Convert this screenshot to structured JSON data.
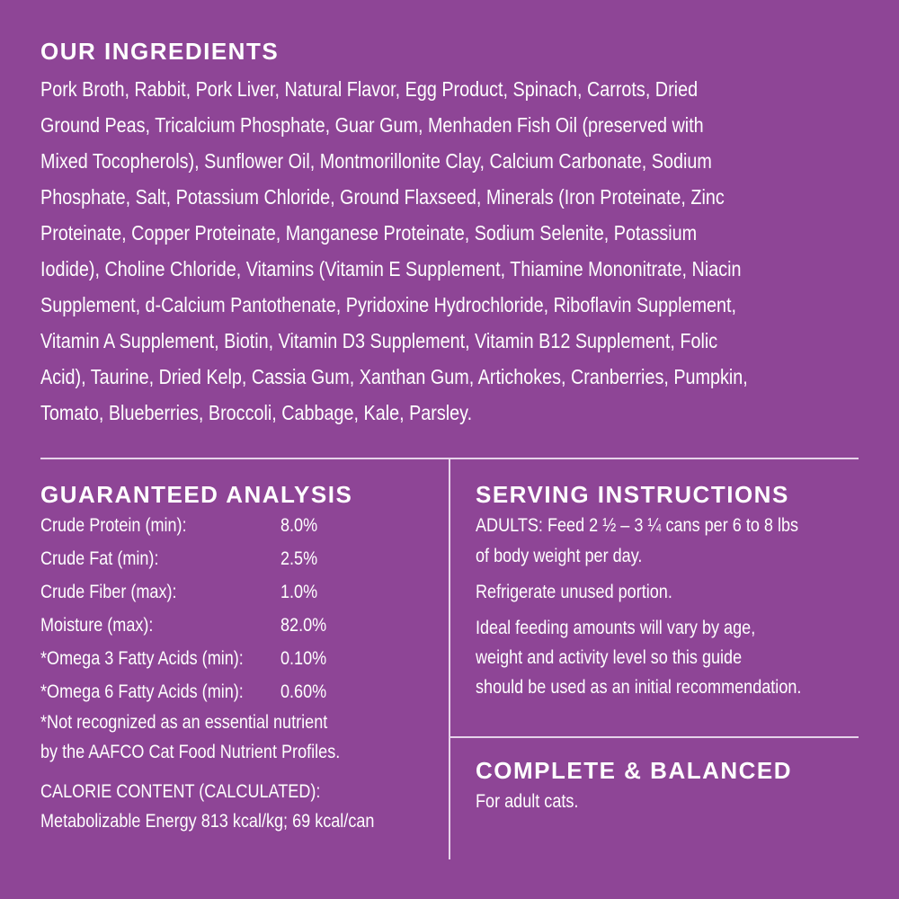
{
  "ingredients": {
    "title": "OUR INGREDIENTS",
    "lines": [
      "Pork Broth, Rabbit, Pork Liver, Natural Flavor, Egg Product, Spinach, Carrots, Dried",
      "Ground Peas, Tricalcium Phosphate, Guar Gum, Menhaden Fish Oil (preserved with",
      "Mixed Tocopherols), Sunflower Oil, Montmorillonite Clay, Calcium Carbonate, Sodium",
      "Phosphate, Salt, Potassium Chloride, Ground Flaxseed, Minerals (Iron Proteinate, Zinc",
      "Proteinate, Copper Proteinate, Manganese Proteinate, Sodium Selenite, Potassium",
      "Iodide), Choline Chloride, Vitamins (Vitamin E Supplement, Thiamine Mononitrate, Niacin",
      "Supplement, d-Calcium Pantothenate, Pyridoxine Hydrochloride, Riboflavin Supplement,",
      "Vitamin A Supplement, Biotin, Vitamin D3 Supplement, Vitamin B12 Supplement, Folic",
      "Acid), Taurine, Dried Kelp, Cassia Gum, Xanthan Gum, Artichokes, Cranberries, Pumpkin,",
      "Tomato, Blueberries, Broccoli, Cabbage, Kale, Parsley."
    ]
  },
  "analysis": {
    "title": "GUARANTEED ANALYSIS",
    "rows": [
      {
        "label": "Crude Protein (min):",
        "value": "8.0%"
      },
      {
        "label": "Crude Fat (min):",
        "value": "2.5%"
      },
      {
        "label": "Crude Fiber (max):",
        "value": "1.0%"
      },
      {
        "label": "Moisture (max):",
        "value": "82.0%"
      },
      {
        "label": "*Omega 3 Fatty Acids (min):",
        "value": "0.10%"
      },
      {
        "label": "*Omega 6 Fatty Acids (min):",
        "value": "0.60%"
      }
    ],
    "footnote": [
      "*Not recognized as an essential nutrient",
      " by the AAFCO Cat Food Nutrient Profiles."
    ],
    "calorie": [
      "CALORIE CONTENT (CALCULATED):",
      "Metabolizable Energy 813 kcal/kg; 69 kcal/can"
    ]
  },
  "serving": {
    "title": "SERVING INSTRUCTIONS",
    "lines": [
      "ADULTS: Feed 2 ½ – 3 ¼ cans per 6 to 8 lbs",
      "of body weight per day.",
      "Refrigerate unused portion.",
      "Ideal feeding amounts will vary by age,",
      "weight and activity level so this guide",
      "should be used as an initial recommendation."
    ]
  },
  "complete": {
    "title": "COMPLETE & BALANCED",
    "text": "For adult cats."
  },
  "colors": {
    "background": "#8e4596",
    "text": "#ffffff"
  }
}
